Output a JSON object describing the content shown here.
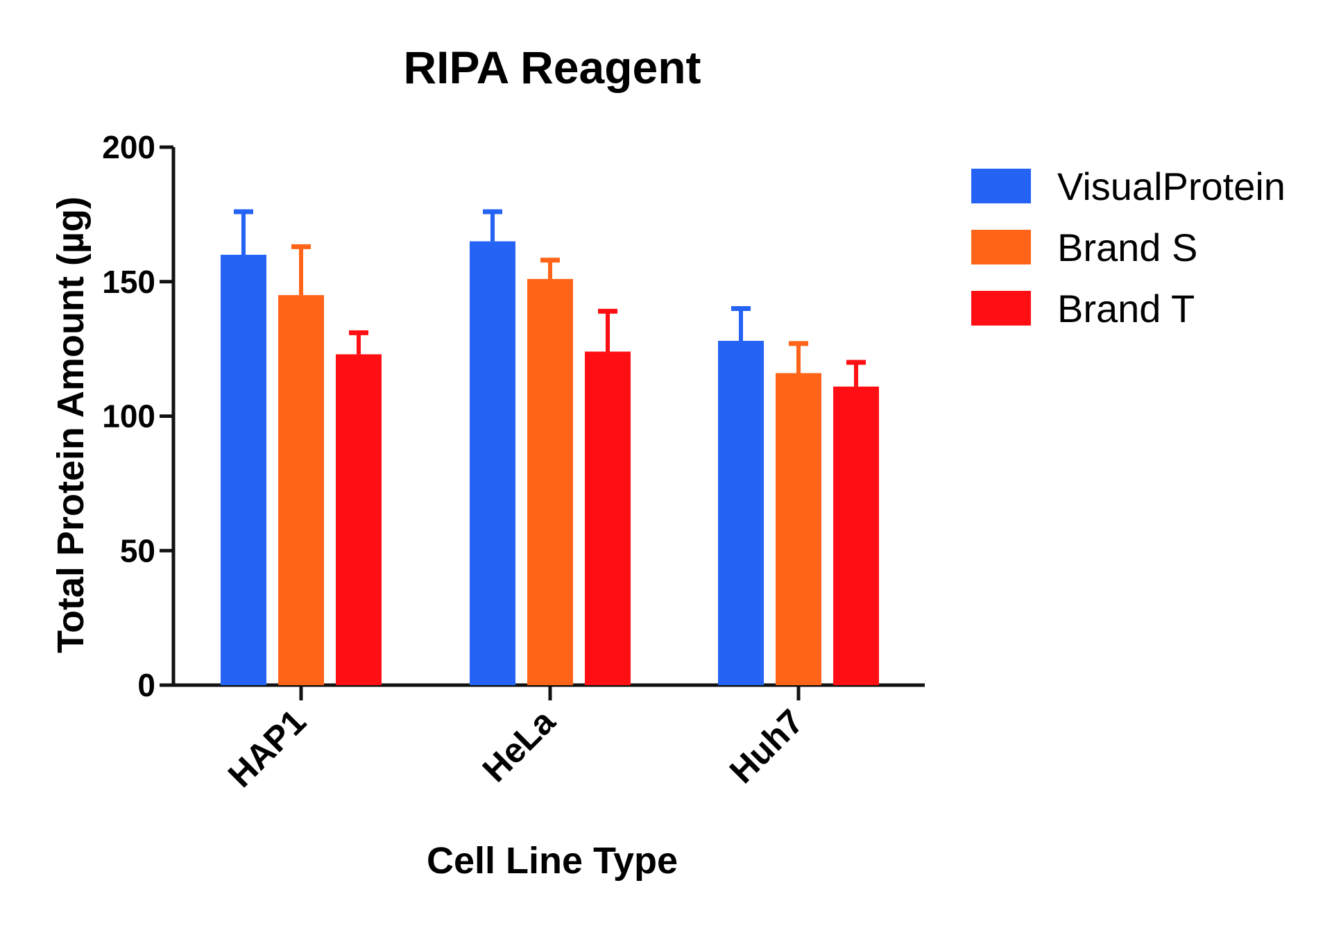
{
  "chart_data": {
    "type": "bar",
    "title": "RIPA Reagent",
    "xlabel": "Cell Line Type",
    "ylabel": "Total Protein Amount (µg)",
    "ylim": [
      0,
      200
    ],
    "yticks": [
      0,
      50,
      100,
      150,
      200
    ],
    "categories": [
      "HAP1",
      "HeLa",
      "Huh7"
    ],
    "series": [
      {
        "name": "VisualProtein",
        "color": "#2563f5",
        "values": [
          160,
          165,
          128
        ],
        "errors": [
          16,
          11,
          12
        ]
      },
      {
        "name": "Brand S",
        "color": "#ff6418",
        "values": [
          145,
          151,
          116
        ],
        "errors": [
          18,
          7,
          11
        ]
      },
      {
        "name": "Brand T",
        "color": "#ff0f13",
        "values": [
          123,
          124,
          111
        ],
        "errors": [
          8,
          15,
          9
        ]
      }
    ],
    "legend_position": "right",
    "grid": false,
    "error_bars": "upper"
  }
}
